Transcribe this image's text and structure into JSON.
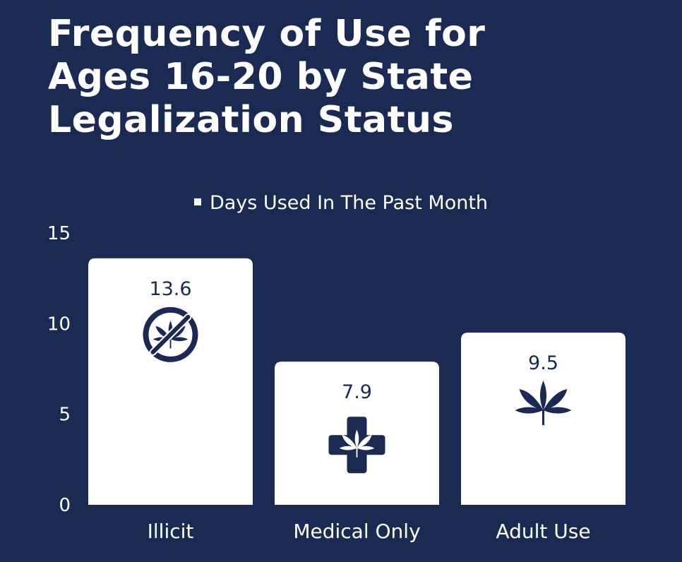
{
  "title_lines": [
    "Frequency of Use for",
    "Ages 16-20 by State",
    "Legalization Status"
  ],
  "colors": {
    "background": "#1b2a52",
    "bar": "#ffffff",
    "text": "#ffffff",
    "icon": "#1b2a52"
  },
  "chart_data": {
    "type": "bar",
    "title": "Frequency of Use for Ages 16-20 by State Legalization Status",
    "categories": [
      "Illicit",
      "Medical Only",
      "Adult Use"
    ],
    "series": [
      {
        "name": "Days Used In The Past Month",
        "values": [
          13.6,
          7.9,
          9.5
        ]
      }
    ],
    "data_labels": [
      "13.6",
      "7.9",
      "9.5"
    ],
    "icons": [
      "no-cannabis-icon",
      "medical-cross-cannabis-icon",
      "cannabis-leaf-icon"
    ],
    "ylim": [
      0,
      15
    ],
    "yticks": [
      0,
      5,
      10,
      15
    ],
    "legend_position": "top-center",
    "grid": false
  }
}
